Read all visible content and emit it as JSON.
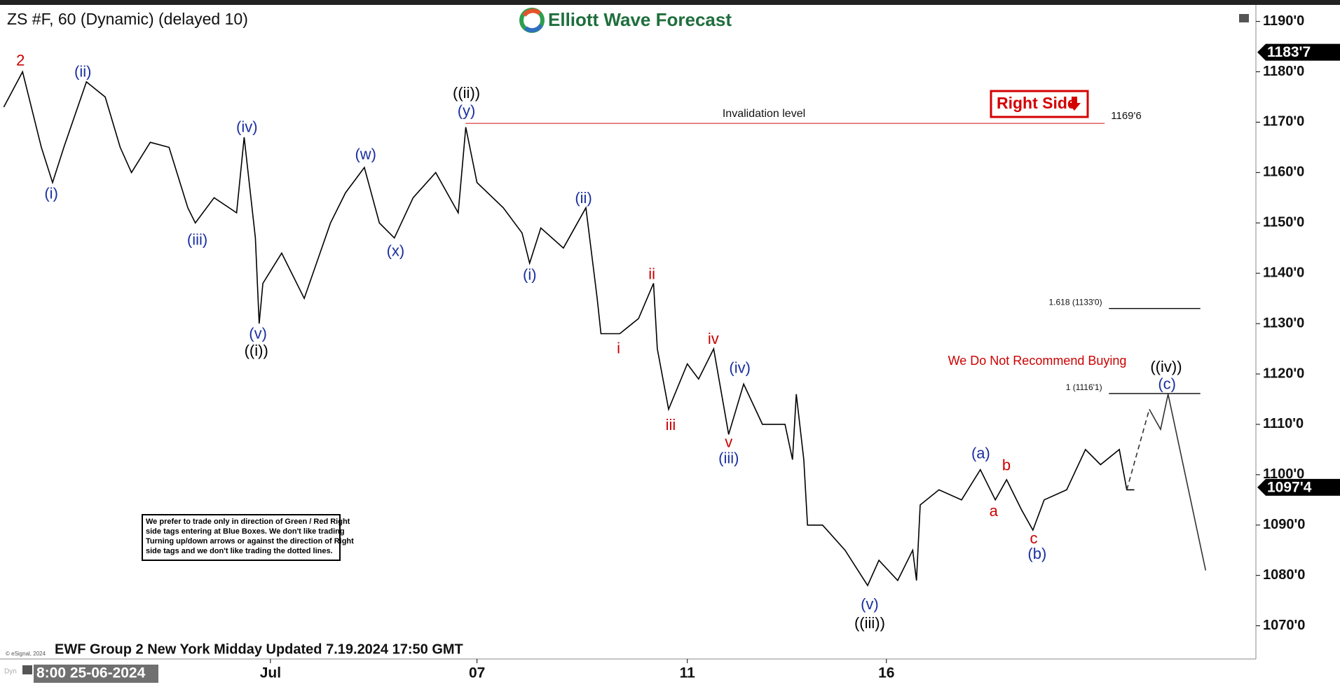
{
  "chart_data": {
    "type": "line",
    "title": "ZS #F, 60 (Dynamic) (delayed 10)",
    "brand": "Elliott Wave Forecast",
    "footer": "EWF Group 2 New York Midday Updated 7.19.2024 17:50 GMT",
    "copyright": "© eSignal, 2024",
    "start_label": "8:00 25-06-2024",
    "corner_label": "Dyn",
    "invalidation_text": "Invalidation level",
    "right_side": "Right Side",
    "warning": "We Do Not Recommend Buying",
    "note": [
      "We prefer to trade only in direction of Green / Red Right",
      "side tags entering at Blue Boxes. We don't like trading",
      "Turning up/down arrows or against the direction of Right",
      "side tags and we don't like trading the dotted lines."
    ],
    "xlim": [
      0,
      334
    ],
    "ylim": [
      1063.4,
      1192.9
    ],
    "xticks": [
      {
        "value": 72,
        "label": "Jul"
      },
      {
        "value": 127,
        "label": "07"
      },
      {
        "value": 183,
        "label": "11"
      },
      {
        "value": 236,
        "label": "16"
      }
    ],
    "yticks": [
      {
        "value": 1070,
        "label": "1070'0"
      },
      {
        "value": 1080,
        "label": "1080'0"
      },
      {
        "value": 1090,
        "label": "1090'0"
      },
      {
        "value": 1100,
        "label": "1100'0"
      },
      {
        "value": 1110,
        "label": "1110'0"
      },
      {
        "value": 1120,
        "label": "1120'0"
      },
      {
        "value": 1130,
        "label": "1130'0"
      },
      {
        "value": 1140,
        "label": "1140'0"
      },
      {
        "value": 1150,
        "label": "1150'0"
      },
      {
        "value": 1160,
        "label": "1160'0"
      },
      {
        "value": 1170,
        "label": "1170'0"
      },
      {
        "value": 1180,
        "label": "1180'0"
      },
      {
        "value": 1190,
        "label": "1190'0"
      }
    ],
    "series": [
      {
        "color": "#000000",
        "dashed": false,
        "x": [
          1,
          6,
          11,
          14,
          17,
          23,
          28,
          32,
          35,
          40,
          45,
          50,
          52,
          57,
          63,
          65,
          68,
          69,
          70,
          75,
          81,
          88,
          92,
          97,
          101,
          105,
          110,
          116,
          122,
          124,
          127,
          134,
          139,
          141,
          144,
          150,
          156,
          159,
          160,
          165,
          170,
          174,
          175,
          178,
          183,
          186,
          190,
          194,
          198,
          203,
          209,
          211,
          212,
          214,
          215,
          219,
          225,
          231,
          234,
          239,
          243,
          244,
          245,
          250,
          256,
          261,
          265,
          268,
          272,
          275,
          278,
          284,
          289,
          293,
          298,
          300,
          302
        ],
        "values": [
          1173,
          1180,
          1165,
          1158,
          1165,
          1178,
          1175,
          1165,
          1160,
          1166,
          1165,
          1153,
          1150,
          1155,
          1152,
          1167,
          1147,
          1130,
          1138,
          1144,
          1135,
          1150,
          1156,
          1161,
          1150,
          1147,
          1155,
          1160,
          1152,
          1169,
          1158,
          1153,
          1148,
          1142,
          1149,
          1145,
          1153,
          1135,
          1128,
          1128,
          1131,
          1138,
          1125,
          1113,
          1122,
          1119,
          1125,
          1108,
          1118,
          1110,
          1110,
          1103,
          1116,
          1103,
          1090,
          1090,
          1085,
          1078,
          1083,
          1079,
          1085,
          1079,
          1094,
          1097,
          1095,
          1101,
          1095,
          1099,
          1093,
          1089,
          1095,
          1097,
          1105,
          1102,
          1105,
          1097,
          1097
        ]
      },
      {
        "color": "#333333",
        "dashed": true,
        "x": [
          300,
          306
        ],
        "values": [
          1097,
          1113
        ]
      },
      {
        "color": "#333333",
        "dashed": false,
        "x": [
          306,
          309,
          311,
          321
        ],
        "values": [
          1113,
          1109,
          1116,
          1081
        ]
      }
    ],
    "levels": [
      {
        "value": 1169.75,
        "label": "1169'6",
        "color": "#e06060"
      },
      {
        "value": 1133,
        "label": "1.618 (1133'0)",
        "color": "#000000"
      },
      {
        "value": 1116.125,
        "label": "1 (1116'1)",
        "color": "#000000"
      }
    ],
    "price_tags": [
      {
        "value": 1183.875,
        "label": "1183'7"
      },
      {
        "value": 1097.5,
        "label": "1097'4"
      }
    ],
    "annotations": [
      {
        "text": "2",
        "color": "#cc0000"
      },
      {
        "text": "(ii)",
        "color": "#1a2fa0"
      },
      {
        "text": "(i)",
        "color": "#1a2fa0"
      },
      {
        "text": "(iv)",
        "color": "#1a2fa0"
      },
      {
        "text": "(iii)",
        "color": "#1a2fa0"
      },
      {
        "text": "(v)",
        "color": "#1a2fa0"
      },
      {
        "text": "((i))",
        "color": "#000000"
      },
      {
        "text": "(w)",
        "color": "#1a2fa0"
      },
      {
        "text": "(x)",
        "color": "#1a2fa0"
      },
      {
        "text": "((ii))",
        "color": "#000000"
      },
      {
        "text": "(y)",
        "color": "#1a2fa0"
      },
      {
        "text": "(i)",
        "color": "#1a2fa0"
      },
      {
        "text": "(ii)",
        "color": "#1a2fa0"
      },
      {
        "text": "ii",
        "color": "#cc0000"
      },
      {
        "text": "i",
        "color": "#cc0000"
      },
      {
        "text": "iii",
        "color": "#cc0000"
      },
      {
        "text": "iv",
        "color": "#cc0000"
      },
      {
        "text": "(iv)",
        "color": "#1a2fa0"
      },
      {
        "text": "v",
        "color": "#cc0000"
      },
      {
        "text": "(iii)",
        "color": "#1a2fa0"
      },
      {
        "text": "(v)",
        "color": "#1a2fa0"
      },
      {
        "text": "((iii))",
        "color": "#000000"
      },
      {
        "text": "(a)",
        "color": "#1a2fa0"
      },
      {
        "text": "b",
        "color": "#cc0000"
      },
      {
        "text": "a",
        "color": "#cc0000"
      },
      {
        "text": "c",
        "color": "#cc0000"
      },
      {
        "text": "(b)",
        "color": "#1a2fa0"
      },
      {
        "text": "((iv))",
        "color": "#000000"
      },
      {
        "text": "(c)",
        "color": "#1a2fa0"
      }
    ]
  }
}
